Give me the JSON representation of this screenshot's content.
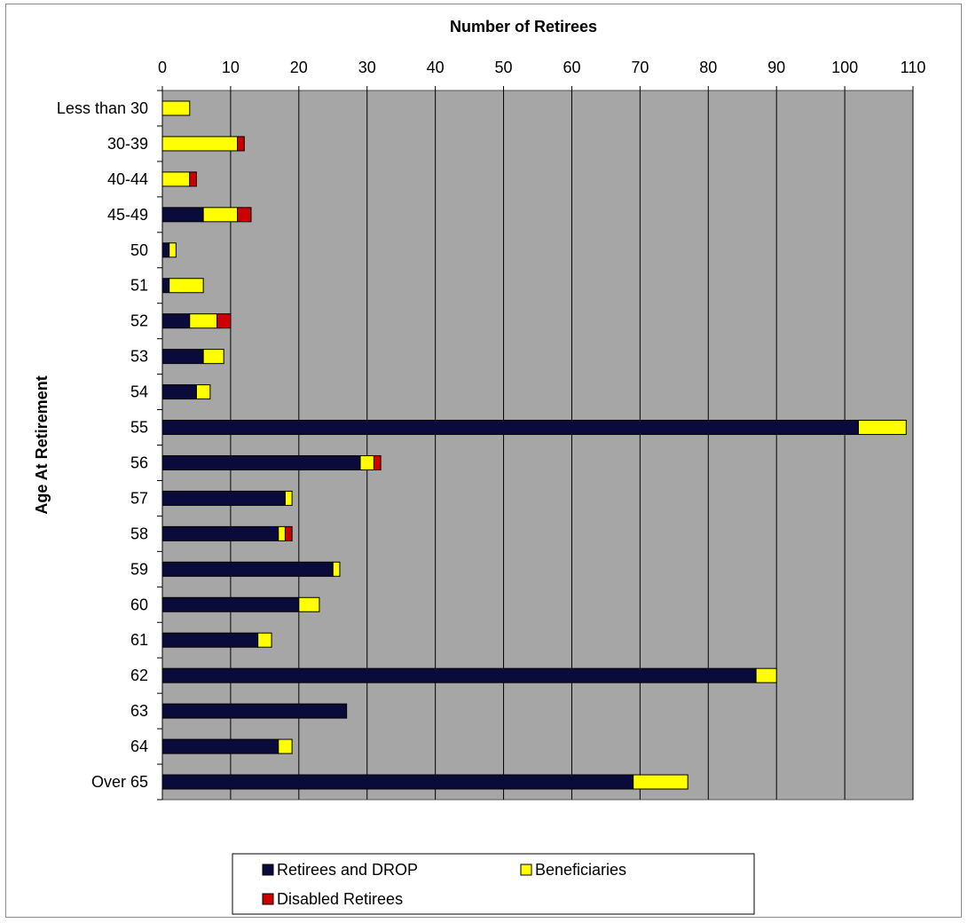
{
  "chart_data": {
    "type": "bar",
    "orientation": "horizontal",
    "stacked": true,
    "title": "",
    "xlabel": "Number of Retirees",
    "ylabel": "Age  At Retirement",
    "xlim": [
      0,
      110
    ],
    "x_ticks": [
      0,
      10,
      20,
      30,
      40,
      50,
      60,
      70,
      80,
      90,
      100,
      110
    ],
    "x_axis_position": "top",
    "grid": true,
    "legend_position": "bottom",
    "categories": [
      "Less than 30",
      "30-39",
      "40-44",
      "45-49",
      "50",
      "51",
      "52",
      "53",
      "54",
      "55",
      "56",
      "57",
      "58",
      "59",
      "60",
      "61",
      "62",
      "63",
      "64",
      "Over 65"
    ],
    "series": [
      {
        "name": "Retirees and DROP",
        "color": "#0b0b3b",
        "values": [
          0,
          0,
          0,
          6,
          1,
          1,
          4,
          6,
          5,
          102,
          29,
          18,
          17,
          25,
          20,
          14,
          87,
          27,
          17,
          69
        ]
      },
      {
        "name": "Beneficiaries",
        "color": "#ffff00",
        "values": [
          4,
          11,
          4,
          5,
          1,
          5,
          4,
          3,
          2,
          7,
          2,
          1,
          1,
          1,
          3,
          2,
          3,
          0,
          2,
          8
        ]
      },
      {
        "name": "Disabled Retirees",
        "color": "#cc0000",
        "values": [
          0,
          1,
          1,
          2,
          0,
          0,
          2,
          0,
          0,
          0,
          1,
          0,
          1,
          0,
          0,
          0,
          0,
          0,
          0,
          0
        ]
      }
    ],
    "plot_background": "#a6a6a6"
  }
}
